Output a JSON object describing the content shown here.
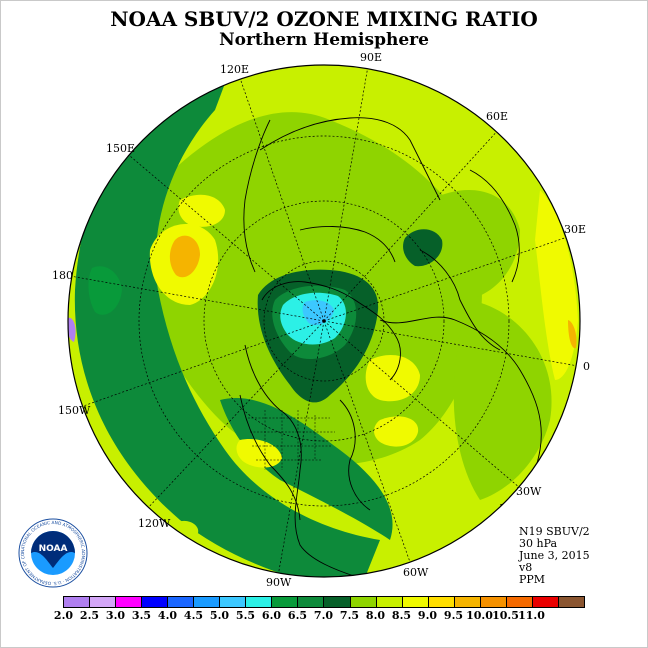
{
  "title": "NOAA SBUV/2 OZONE MIXING RATIO",
  "subtitle": "Northern Hemisphere",
  "longitude_labels": [
    "90E",
    "60E",
    "30E",
    "0",
    "30W",
    "60W",
    "90W",
    "120W",
    "150W",
    "180",
    "150E",
    "120E"
  ],
  "info": {
    "satellite": "N19 SBUV/2",
    "level": "30 hPa",
    "date": "June 3, 2015",
    "version": "v8",
    "units": "PPM"
  },
  "colorbar": {
    "colors": [
      "#b07ff0",
      "#d3a6f7",
      "#ff00ff",
      "#0000ff",
      "#1a66ff",
      "#1a9bff",
      "#3cc8ff",
      "#2cf0e6",
      "#089a3a",
      "#0d8a3a",
      "#066029",
      "#8fd400",
      "#c8f000",
      "#f0fa00",
      "#ffde00",
      "#f5b400",
      "#f59100",
      "#f56a00",
      "#ea0000",
      "#8a5530"
    ],
    "ticks": [
      "2.0",
      "2.5",
      "3.0",
      "3.5",
      "4.0",
      "4.5",
      "5.0",
      "5.5",
      "6.0",
      "6.5",
      "7.0",
      "7.5",
      "8.0",
      "8.5",
      "9.0",
      "9.5",
      "10.0",
      "10.5",
      "11.0"
    ]
  },
  "logo": {
    "text": "NOAA",
    "ring_text": "NATIONAL OCEANIC AND ATMOSPHERIC ADMINISTRATION · U.S. DEPARTMENT OF COMMERCE ·"
  }
}
